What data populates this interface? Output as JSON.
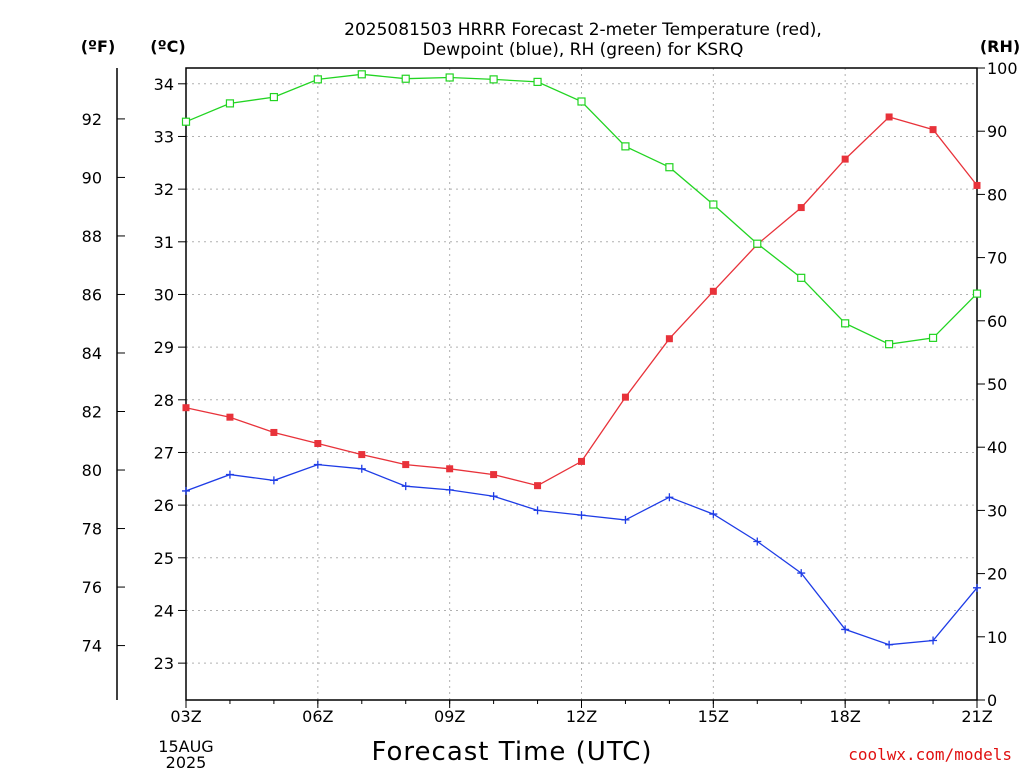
{
  "chart_data": {
    "type": "line",
    "title_line1": "2025081503 HRRR Forecast 2-meter Temperature (red),",
    "title_line2": "Dewpoint (blue), RH (green) for KSRQ",
    "unit_f": "(ºF)",
    "unit_c": "(ºC)",
    "unit_rh": "(RH)",
    "xlabel": "Forecast Time (UTC)",
    "date_label_line1": "15AUG",
    "date_label_line2": "2025",
    "credit": "coolwx.com/models",
    "x_hours": [
      3,
      4,
      5,
      6,
      7,
      8,
      9,
      10,
      11,
      12,
      13,
      14,
      15,
      16,
      17,
      18,
      19,
      20,
      21
    ],
    "xlim": [
      3,
      21
    ],
    "x_ticks": [
      {
        "hour": 3,
        "label": "03Z"
      },
      {
        "hour": 6,
        "label": "06Z"
      },
      {
        "hour": 9,
        "label": "09Z"
      },
      {
        "hour": 12,
        "label": "12Z"
      },
      {
        "hour": 15,
        "label": "15Z"
      },
      {
        "hour": 18,
        "label": "18Z"
      },
      {
        "hour": 21,
        "label": "21Z"
      }
    ],
    "celsius_axis": {
      "lim": [
        22.3,
        34.3
      ],
      "ticks": [
        "23",
        "24",
        "25",
        "26",
        "27",
        "28",
        "29",
        "30",
        "31",
        "32",
        "33",
        "34"
      ]
    },
    "fahrenheit_axis": {
      "ticks": [
        "74",
        "76",
        "78",
        "80",
        "82",
        "84",
        "86",
        "88",
        "90",
        "92"
      ]
    },
    "rh_axis": {
      "lim": [
        0,
        100
      ],
      "ticks": [
        "0",
        "10",
        "20",
        "30",
        "40",
        "50",
        "60",
        "70",
        "80",
        "90",
        "100"
      ]
    },
    "grid": true,
    "series": [
      {
        "name": "Temperature",
        "axis": "celsius",
        "color": "#e8323a",
        "marker": "filled-square",
        "values": [
          27.85,
          27.67,
          27.38,
          27.17,
          26.96,
          26.77,
          26.69,
          26.58,
          26.37,
          26.83,
          28.05,
          29.16,
          30.06,
          30.95,
          31.65,
          32.57,
          33.37,
          33.13,
          32.07
        ]
      },
      {
        "name": "Dewpoint",
        "axis": "celsius",
        "color": "#1e3ce6",
        "marker": "plus",
        "values": [
          26.27,
          26.58,
          26.47,
          26.77,
          26.69,
          26.36,
          26.29,
          26.17,
          25.9,
          25.81,
          25.72,
          26.15,
          25.83,
          25.31,
          24.71,
          23.64,
          23.35,
          23.43,
          24.43
        ]
      },
      {
        "name": "RH",
        "axis": "rh",
        "color": "#22d422",
        "marker": "open-square",
        "values": [
          91.5,
          94.4,
          95.4,
          98.2,
          99.0,
          98.3,
          98.5,
          98.2,
          97.8,
          94.7,
          87.6,
          84.3,
          78.4,
          72.2,
          66.8,
          59.6,
          56.3,
          57.3,
          64.3
        ]
      }
    ]
  }
}
